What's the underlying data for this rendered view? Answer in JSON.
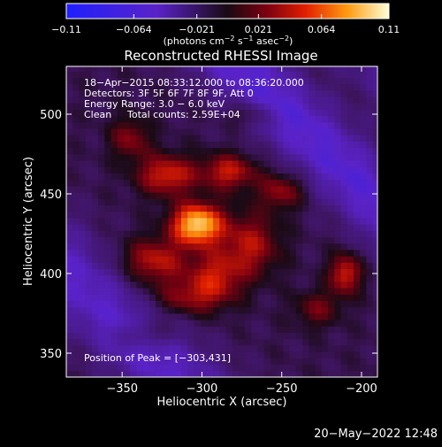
{
  "chart_data": {
    "type": "heatmap",
    "title": "Reconstructed RHESSI Image",
    "xlabel": "Heliocentric X (arcsec)",
    "ylabel": "Heliocentric Y (arcsec)",
    "xlim": [
      -385,
      -190
    ],
    "ylim": [
      335,
      530
    ],
    "xticks": [
      -350,
      -300,
      -250,
      -200
    ],
    "xtick_labels": [
      "−350",
      "−300",
      "−250",
      "−200"
    ],
    "yticks": [
      350,
      400,
      450,
      500
    ],
    "ytick_labels": [
      "350",
      "400",
      "450",
      "500"
    ],
    "colorbar": {
      "range": [
        -0.11,
        0.11
      ],
      "ticks": [
        -0.11,
        -0.064,
        -0.021,
        0.021,
        0.064,
        0.11
      ],
      "tick_labels": [
        "−0.11",
        "−0.064",
        "−0.021",
        "0.021",
        "0.064",
        "0.11"
      ],
      "unit_prefix": "(photons cm",
      "unit_exp1": "−2",
      "unit_mid": " s",
      "unit_exp2": "−1",
      "unit_mid2": " asec",
      "unit_exp3": "−2",
      "unit_suffix": ")"
    },
    "annotations": {
      "time_range": "18−Apr−2015 08:33:12.000 to 08:36:20.000",
      "detectors": "Detectors: 3F 5F 6F 7F 8F 9F, Att 0",
      "energy": "Energy Range: 3.0 − 6.0 keV",
      "clean_label": "Clean",
      "total_counts": "Total counts: 2.59E+04",
      "peak": "Position of Peak = [−303,431]"
    },
    "peak_position": [
      -303,
      431
    ],
    "peak_value": 0.11,
    "grid": false,
    "sources": [
      {
        "x": -303,
        "y": 431,
        "amp": 1.0,
        "sx": 11,
        "sy": 9
      },
      {
        "x": -322,
        "y": 462,
        "amp": 0.55,
        "sx": 13,
        "sy": 9
      },
      {
        "x": -283,
        "y": 464,
        "amp": 0.5,
        "sx": 12,
        "sy": 8
      },
      {
        "x": -330,
        "y": 408,
        "amp": 0.5,
        "sx": 14,
        "sy": 10
      },
      {
        "x": -270,
        "y": 418,
        "amp": 0.45,
        "sx": 13,
        "sy": 14
      },
      {
        "x": -292,
        "y": 398,
        "amp": 0.45,
        "sx": 12,
        "sy": 11
      },
      {
        "x": -250,
        "y": 452,
        "amp": 0.4,
        "sx": 10,
        "sy": 8
      },
      {
        "x": -345,
        "y": 485,
        "amp": 0.35,
        "sx": 9,
        "sy": 9
      },
      {
        "x": -310,
        "y": 385,
        "amp": 0.35,
        "sx": 16,
        "sy": 8
      },
      {
        "x": -228,
        "y": 378,
        "amp": 0.3,
        "sx": 10,
        "sy": 8
      },
      {
        "x": -210,
        "y": 400,
        "amp": 0.55,
        "sx": 7,
        "sy": 9
      },
      {
        "x": -335,
        "y": 362,
        "amp": 0.25,
        "sx": 12,
        "sy": 6
      },
      {
        "x": -270,
        "y": 500,
        "amp": 0.25,
        "sx": 10,
        "sy": 6
      }
    ]
  },
  "footer": {
    "date": "20−May−2022 12:48"
  }
}
